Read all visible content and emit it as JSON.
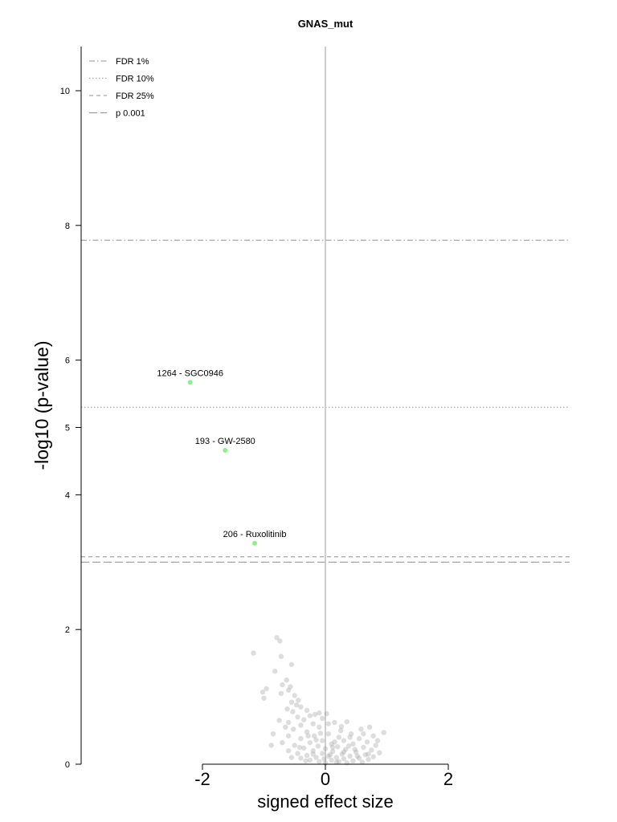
{
  "chart_data": {
    "type": "scatter",
    "title": "GNAS_mut",
    "xlabel": "signed effect size",
    "ylabel": "-log10 (p-value)",
    "xlim": [
      -4,
      4
    ],
    "x_ticks": [
      -2,
      0,
      2
    ],
    "x_tick_labels": [
      "-2",
      "0",
      "2"
    ],
    "y_ticks": [
      0,
      2,
      4,
      5,
      6,
      8,
      10
    ],
    "y_tick_labels": [
      "0",
      "2",
      "4",
      "5",
      "6",
      "8",
      "10"
    ],
    "grid": false,
    "legend_position": "top-left",
    "thresholds": [
      {
        "name": "FDR 1%",
        "y": 7.78,
        "style": "dashdot"
      },
      {
        "name": "FDR 10%",
        "y": 5.3,
        "style": "dotted"
      },
      {
        "name": "FDR 25%",
        "y": 3.08,
        "style": "dashed"
      },
      {
        "name": "p 0.001",
        "y": 3.0,
        "style": "longdash"
      }
    ],
    "highlighted_points": [
      {
        "label": "1264 - SGC0946",
        "x": -2.2,
        "y": 5.67
      },
      {
        "label": "193 - GW-2580",
        "x": -1.63,
        "y": 4.66
      },
      {
        "label": "206 - Ruxolitinib",
        "x": -1.15,
        "y": 3.28
      }
    ],
    "background_points": [
      [
        -0.79,
        1.88
      ],
      [
        -0.74,
        1.83
      ],
      [
        -1.17,
        1.65
      ],
      [
        -0.72,
        1.6
      ],
      [
        -0.55,
        1.48
      ],
      [
        -0.82,
        1.38
      ],
      [
        -0.63,
        1.25
      ],
      [
        -0.7,
        1.18
      ],
      [
        -0.57,
        1.15
      ],
      [
        -0.96,
        1.12
      ],
      [
        -0.6,
        1.1
      ],
      [
        -0.72,
        1.05
      ],
      [
        -0.5,
        1.02
      ],
      [
        -1.02,
        1.07
      ],
      [
        -1.0,
        0.98
      ],
      [
        -0.44,
        0.95
      ],
      [
        -0.55,
        0.92
      ],
      [
        -0.47,
        0.88
      ],
      [
        -0.4,
        0.85
      ],
      [
        -0.62,
        0.82
      ],
      [
        -0.3,
        0.8
      ],
      [
        -0.53,
        0.78
      ],
      [
        -0.1,
        0.76
      ],
      [
        -0.17,
        0.74
      ],
      [
        0.02,
        0.75
      ],
      [
        -0.25,
        0.72
      ],
      [
        -0.45,
        0.7
      ],
      [
        -0.35,
        0.66
      ],
      [
        -0.05,
        0.68
      ],
      [
        -0.75,
        0.65
      ],
      [
        -0.6,
        0.62
      ],
      [
        -0.2,
        0.6
      ],
      [
        0.15,
        0.62
      ],
      [
        -0.4,
        0.58
      ],
      [
        -0.1,
        0.55
      ],
      [
        0.35,
        0.63
      ],
      [
        0.72,
        0.55
      ],
      [
        0.58,
        0.52
      ],
      [
        0.95,
        0.47
      ],
      [
        0.25,
        0.5
      ],
      [
        -0.52,
        0.52
      ],
      [
        -0.3,
        0.48
      ],
      [
        0.05,
        0.45
      ],
      [
        0.42,
        0.45
      ],
      [
        0.78,
        0.42
      ],
      [
        -0.85,
        0.45
      ],
      [
        -0.6,
        0.42
      ],
      [
        -0.18,
        0.42
      ],
      [
        0.22,
        0.4
      ],
      [
        0.55,
        0.38
      ],
      [
        -0.4,
        0.38
      ],
      [
        -0.05,
        0.35
      ],
      [
        0.3,
        0.35
      ],
      [
        0.68,
        0.33
      ],
      [
        -0.7,
        0.32
      ],
      [
        -0.25,
        0.32
      ],
      [
        0.1,
        0.3
      ],
      [
        0.45,
        0.3
      ],
      [
        0.82,
        0.28
      ],
      [
        -0.5,
        0.28
      ],
      [
        -0.12,
        0.27
      ],
      [
        0.2,
        0.26
      ],
      [
        0.62,
        0.25
      ],
      [
        -0.35,
        0.24
      ],
      [
        0.0,
        0.23
      ],
      [
        0.33,
        0.22
      ],
      [
        0.75,
        0.21
      ],
      [
        -0.6,
        0.2
      ],
      [
        -0.2,
        0.2
      ],
      [
        0.12,
        0.19
      ],
      [
        0.5,
        0.18
      ],
      [
        0.88,
        0.17
      ],
      [
        -0.45,
        0.16
      ],
      [
        -0.05,
        0.16
      ],
      [
        0.27,
        0.15
      ],
      [
        0.65,
        0.14
      ],
      [
        -0.3,
        0.13
      ],
      [
        0.05,
        0.12
      ],
      [
        0.4,
        0.12
      ],
      [
        0.78,
        0.11
      ],
      [
        -0.15,
        0.1
      ],
      [
        0.18,
        0.1
      ],
      [
        0.55,
        0.09
      ],
      [
        -0.4,
        0.09
      ],
      [
        -0.02,
        0.08
      ],
      [
        0.3,
        0.08
      ],
      [
        0.7,
        0.07
      ],
      [
        -0.25,
        0.06
      ],
      [
        0.1,
        0.06
      ],
      [
        0.45,
        0.05
      ],
      [
        -0.1,
        0.04
      ],
      [
        0.22,
        0.04
      ],
      [
        0.6,
        0.03
      ],
      [
        0.0,
        0.02
      ],
      [
        0.35,
        0.02
      ],
      [
        -0.2,
        0.15
      ],
      [
        0.15,
        0.33
      ],
      [
        0.48,
        0.22
      ],
      [
        -0.08,
        0.46
      ],
      [
        0.26,
        0.56
      ],
      [
        -0.32,
        0.05
      ],
      [
        0.08,
        0.14
      ],
      [
        0.38,
        0.27
      ],
      [
        -0.55,
        0.1
      ],
      [
        0.62,
        0.45
      ],
      [
        -0.15,
        0.36
      ],
      [
        0.4,
        0.4
      ],
      [
        0.18,
        0.03
      ],
      [
        -0.42,
        0.25
      ],
      [
        0.05,
        0.6
      ],
      [
        0.3,
        0.18
      ],
      [
        0.52,
        0.12
      ],
      [
        -0.28,
        0.42
      ],
      [
        0.12,
        0.25
      ],
      [
        0.85,
        0.35
      ],
      [
        -0.65,
        0.55
      ],
      [
        -0.88,
        0.28
      ],
      [
        0.7,
        0.15
      ]
    ]
  }
}
